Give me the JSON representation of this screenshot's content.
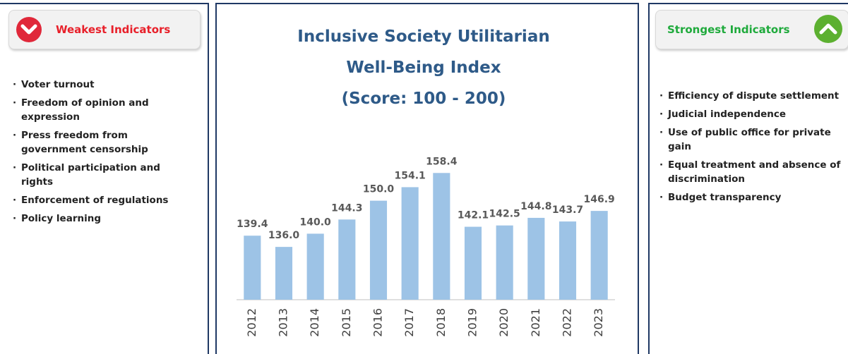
{
  "weakest": {
    "title": "Weakest Indicators",
    "items": [
      "Voter turnout",
      "Freedom of opinion and expression",
      "Press freedom from government censorship",
      "Political participation and rights",
      "Enforcement of regulations",
      "Policy learning"
    ]
  },
  "strongest": {
    "title": "Strongest Indicators",
    "items": [
      "Efficiency of dispute settlement",
      "Judicial independence",
      "Use of public office for private gain",
      "Equal treatment and absence of discrimination",
      "Budget transparency"
    ]
  },
  "chart_data": {
    "type": "bar",
    "title": "Inclusive Society Utilitarian Well-Being Index",
    "subtitle": "(Score: 100 -  200)",
    "categories": [
      "2012",
      "2013",
      "2014",
      "2015",
      "2016",
      "2017",
      "2018",
      "2019",
      "2020",
      "2021",
      "2022",
      "2023"
    ],
    "values": [
      139.4,
      136.0,
      140.0,
      144.3,
      150.0,
      154.1,
      158.4,
      142.1,
      142.5,
      144.8,
      143.7,
      146.9
    ],
    "value_labels": [
      "139.4",
      "136.0",
      "140.0",
      "144.3",
      "150.0",
      "154.1",
      "158.4",
      "142.1",
      "142.5",
      "144.8",
      "143.7",
      "146.9"
    ],
    "color": "#9dc3e6",
    "ylim": [
      120,
      170
    ]
  }
}
